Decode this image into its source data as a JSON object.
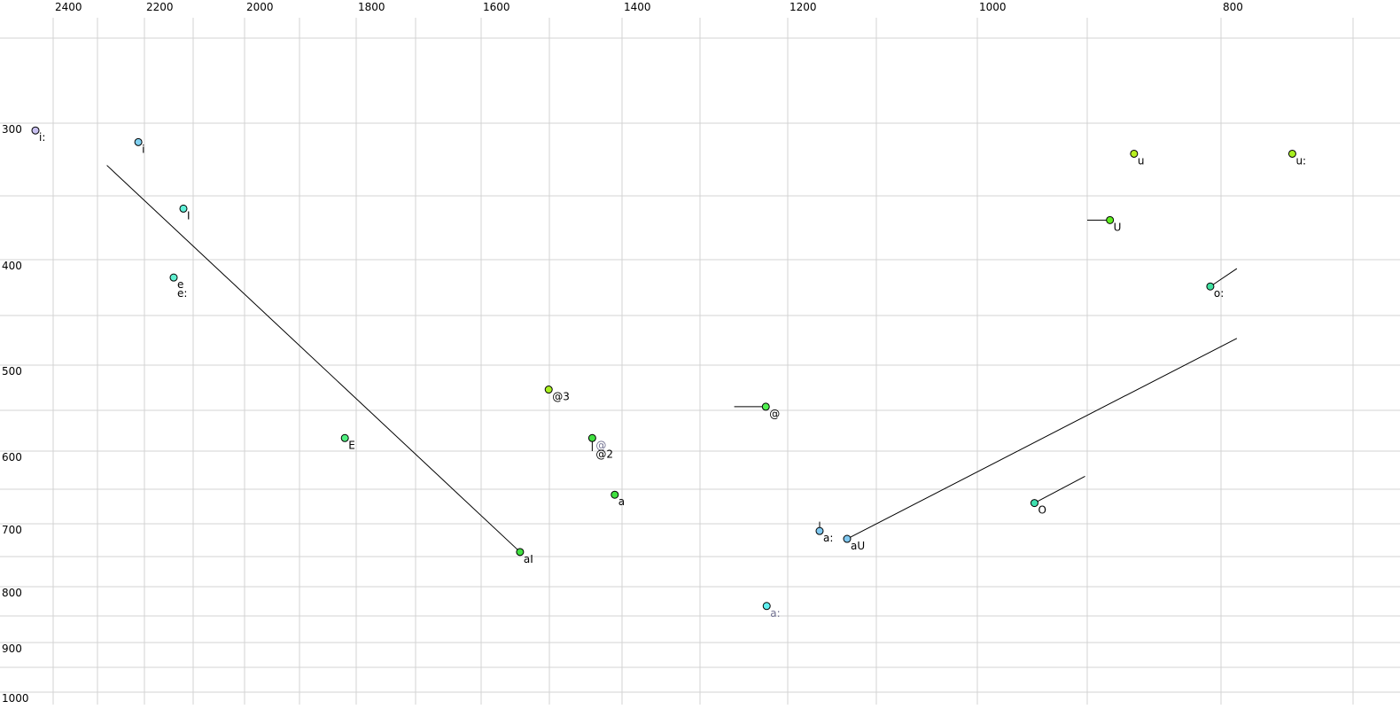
{
  "chart_data": {
    "type": "scatter",
    "title": "",
    "xlabel": "",
    "ylabel": "",
    "x_axis_reversed": true,
    "y_axis_reversed": true,
    "xlim": [
      2450,
      690
    ],
    "ylim": [
      250,
      1000
    ],
    "grid": true,
    "x_ticks": [
      2400,
      2200,
      2000,
      1800,
      1600,
      1400,
      1200,
      1000,
      800
    ],
    "y_ticks": [
      300,
      400,
      500,
      600,
      700,
      800,
      900,
      1000
    ],
    "x_tick_labels": [
      "2400",
      "2200",
      "2000",
      "1800",
      "1600",
      "1400",
      "1200",
      "1000",
      "800"
    ],
    "y_tick_labels": [
      "300",
      "400",
      "500",
      "600",
      "700",
      "800",
      "900",
      "1000"
    ],
    "points": [
      {
        "label": "i:",
        "f2": 2440,
        "f1": 305,
        "color": "#c8c0f0"
      },
      {
        "label": "i",
        "f2": 2213,
        "f1": 313,
        "color": "#80d0f0"
      },
      {
        "label": "I",
        "f2": 2120,
        "f1": 360,
        "color": "#60f0d8"
      },
      {
        "label": "e",
        "label2": "e:",
        "f2": 2140,
        "f1": 416,
        "color": "#60f0d0"
      },
      {
        "label": "E",
        "f2": 1820,
        "f1": 584,
        "color": "#50f080"
      },
      {
        "label": "aI",
        "f2": 1543,
        "f1": 743,
        "color": "#40e040",
        "to": {
          "f2": 2280,
          "f1": 329
        }
      },
      {
        "label": "@3",
        "f2": 1501,
        "f1": 527,
        "color": "#a8f020"
      },
      {
        "label": "@2",
        "label_above": "@",
        "f2": 1441,
        "f1": 584,
        "color": "#40e040",
        "to": {
          "f2": 1441,
          "f1": 600
        }
      },
      {
        "label": "a",
        "f2": 1410,
        "f1": 658,
        "color": "#40e040"
      },
      {
        "label": "@",
        "f2": 1225,
        "f1": 546,
        "color": "#50f050",
        "to": {
          "f2": 1261,
          "f1": 546
        }
      },
      {
        "label": "a:",
        "f2": 1164,
        "f1": 711,
        "color": "#80c8f0",
        "to": {
          "f2": 1164,
          "f1": 697
        }
      },
      {
        "label": "aU",
        "f2": 1133,
        "f1": 723,
        "color": "#80c8f0",
        "to": {
          "f2": 788,
          "f1": 473
        }
      },
      {
        "label": "a:",
        "f2": 1224,
        "f1": 833,
        "color": "#60f0f0",
        "label_color": "#707090"
      },
      {
        "label": "O",
        "f2": 948,
        "f1": 670,
        "color": "#40e0b0",
        "to": {
          "f2": 902,
          "f1": 633
        }
      },
      {
        "label": "U",
        "f2": 883,
        "f1": 369,
        "color": "#60f020",
        "to": {
          "f2": 900,
          "f1": 369
        }
      },
      {
        "label": "u",
        "f2": 865,
        "f1": 321,
        "color": "#b8f020"
      },
      {
        "label": "u:",
        "f2": 746,
        "f1": 321,
        "color": "#a8f020"
      },
      {
        "label": "o:",
        "f2": 808,
        "f1": 424,
        "color": "#40e0a0",
        "to": {
          "f2": 788,
          "f1": 408
        }
      }
    ],
    "colors": {
      "grid": "#d3d3d3",
      "point_stroke": "#000000",
      "secondary_label": "#707090"
    }
  }
}
